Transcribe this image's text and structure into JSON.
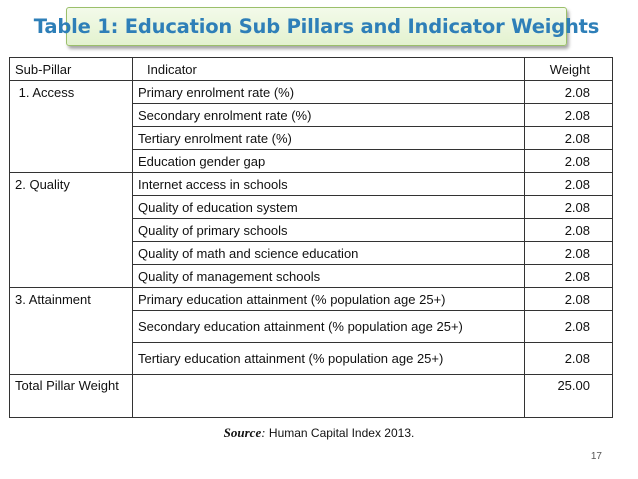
{
  "title": "Table 1: Education Sub Pillars and Indicator Weights",
  "table": {
    "headers": {
      "sub_pillar": "Sub-Pillar",
      "indicator": "Indicator",
      "weight": "Weight"
    },
    "rows": [
      {
        "sub_pillar": " 1. Access",
        "indicator": "Primary enrolment rate (%)",
        "weight": "2.08"
      },
      {
        "sub_pillar": "",
        "indicator": "Secondary enrolment rate (%)",
        "weight": "2.08"
      },
      {
        "sub_pillar": "",
        "indicator": "Tertiary enrolment rate (%)",
        "weight": "2.08"
      },
      {
        "sub_pillar": "",
        "indicator": "Education gender gap",
        "weight": "2.08"
      },
      {
        "sub_pillar": "2. Quality",
        "indicator": "Internet access in schools",
        "weight": "2.08"
      },
      {
        "sub_pillar": "",
        "indicator": "Quality of education system",
        "weight": "2.08"
      },
      {
        "sub_pillar": "",
        "indicator": "Quality of primary schools",
        "weight": "2.08"
      },
      {
        "sub_pillar": "",
        "indicator": "Quality of math and science education",
        "weight": "2.08"
      },
      {
        "sub_pillar": "",
        "indicator": "Quality of management schools",
        "weight": "2.08"
      },
      {
        "sub_pillar": "3. Attainment",
        "indicator": "Primary education attainment (% population age 25+)",
        "weight": "2.08"
      },
      {
        "sub_pillar": "",
        "indicator": "Secondary education attainment (% population age 25+)",
        "weight": "2.08"
      },
      {
        "sub_pillar": "",
        "indicator": "Tertiary education attainment (% population age 25+)",
        "weight": "2.08"
      }
    ],
    "total": {
      "label": "Total Pillar Weight",
      "indicator": "",
      "weight": "25.00"
    }
  },
  "source": {
    "label": "Source",
    "sep": ":",
    "text": " Human Capital Index 2013."
  },
  "page_number": "17",
  "colors": {
    "title_text": "#2e7fb8",
    "title_bg": "#e3f2cf",
    "title_border": "#9bbf6b"
  }
}
